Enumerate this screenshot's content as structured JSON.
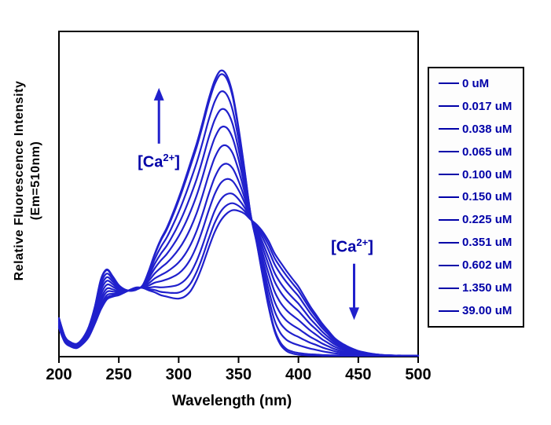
{
  "figure": {
    "background": "#ffffff",
    "curve_color": "#2020CC",
    "accent_color": "#0000A8",
    "axis_color": "#000000"
  },
  "chart_data": {
    "type": "line",
    "title": "",
    "xlabel": "Wavelength (nm)",
    "ylabel_line1": "Relative Fluorescence Intensity",
    "ylabel_line2": "(Em=510nm)",
    "xlim": [
      200,
      500
    ],
    "ylim": [
      0,
      1.14
    ],
    "xticks": [
      200,
      250,
      300,
      350,
      400,
      450,
      500
    ],
    "yticks": [],
    "grid": false,
    "legend_position": "right-outside",
    "isosbestic_point_nm": 362,
    "x": [
      200,
      205,
      210,
      215,
      220,
      225,
      230,
      235,
      240,
      245,
      250,
      255,
      260,
      265,
      270,
      275,
      280,
      285,
      290,
      295,
      300,
      305,
      310,
      315,
      320,
      325,
      330,
      335,
      340,
      345,
      350,
      355,
      360,
      365,
      370,
      375,
      380,
      385,
      390,
      395,
      400,
      405,
      410,
      415,
      420,
      425,
      430,
      435,
      440,
      445,
      450,
      455,
      460,
      465,
      470,
      475,
      480,
      485,
      490,
      495,
      500
    ],
    "endmember_spectra": {
      "description": "Relative intensity (0-1). Each series = fraction_bound * bound + (1 - fraction_bound) * free",
      "free": [
        0.1,
        0.05,
        0.035,
        0.03,
        0.045,
        0.07,
        0.115,
        0.165,
        0.2,
        0.21,
        0.215,
        0.225,
        0.235,
        0.242,
        0.24,
        0.232,
        0.225,
        0.215,
        0.21,
        0.205,
        0.203,
        0.21,
        0.23,
        0.268,
        0.32,
        0.38,
        0.435,
        0.475,
        0.5,
        0.512,
        0.51,
        0.5,
        0.48,
        0.462,
        0.438,
        0.405,
        0.362,
        0.33,
        0.3,
        0.272,
        0.245,
        0.21,
        0.175,
        0.145,
        0.115,
        0.09,
        0.066,
        0.05,
        0.038,
        0.028,
        0.02,
        0.015,
        0.011,
        0.008,
        0.006,
        0.005,
        0.004,
        0.004,
        0.003,
        0.003,
        0.003
      ],
      "bound": [
        0.135,
        0.07,
        0.05,
        0.045,
        0.065,
        0.105,
        0.175,
        0.27,
        0.305,
        0.28,
        0.25,
        0.235,
        0.23,
        0.235,
        0.25,
        0.3,
        0.36,
        0.41,
        0.45,
        0.5,
        0.555,
        0.615,
        0.68,
        0.745,
        0.82,
        0.9,
        0.965,
        1.0,
        0.985,
        0.92,
        0.8,
        0.655,
        0.5,
        0.4,
        0.285,
        0.175,
        0.09,
        0.042,
        0.02,
        0.011,
        0.007,
        0.005,
        0.004,
        0.004,
        0.003,
        0.003,
        0.003,
        0.003,
        0.003,
        0.003,
        0.003,
        0.003,
        0.003,
        0.003,
        0.003,
        0.003,
        0.003,
        0.003,
        0.003,
        0.003,
        0.003
      ]
    },
    "series": [
      {
        "name": "0 uM",
        "fraction_bound": 0.0
      },
      {
        "name": "0.017 uM",
        "fraction_bound": 0.06
      },
      {
        "name": "0.038 uM",
        "fraction_bound": 0.14
      },
      {
        "name": "0.065 uM",
        "fraction_bound": 0.25
      },
      {
        "name": "0.100 uM",
        "fraction_bound": 0.36
      },
      {
        "name": "0.150 uM",
        "fraction_bound": 0.49
      },
      {
        "name": "0.225 uM",
        "fraction_bound": 0.62
      },
      {
        "name": "0.351 uM",
        "fraction_bound": 0.74
      },
      {
        "name": "0.602 uM",
        "fraction_bound": 0.86
      },
      {
        "name": "1.350 uM",
        "fraction_bound": 0.975
      },
      {
        "name": "39.00 uM",
        "fraction_bound": 1.0
      }
    ],
    "annotations": [
      {
        "id": "ca-increase",
        "text_prefix": "[Ca",
        "text_sup": "2+",
        "text_suffix": "]",
        "arrow_direction": "up",
        "x_nm": 283.5,
        "arrow_from_intensity": 0.745,
        "arrow_to_intensity": 0.94
      },
      {
        "id": "ca-decrease",
        "text_prefix": "[Ca",
        "text_sup": "2+",
        "text_suffix": "]",
        "arrow_direction": "down",
        "x_nm": 446.5,
        "arrow_from_intensity": 0.325,
        "arrow_to_intensity": 0.128
      }
    ]
  }
}
